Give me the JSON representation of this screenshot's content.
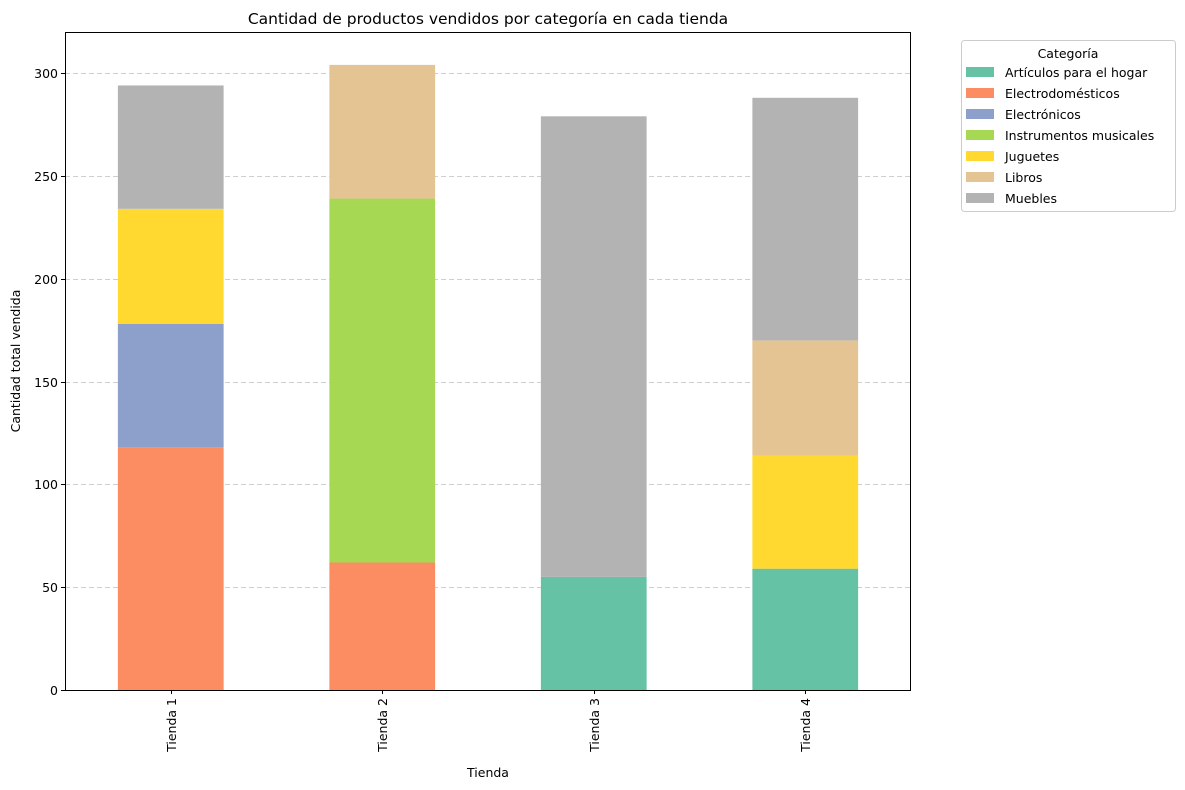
{
  "chart_data": {
    "type": "bar",
    "stacked": true,
    "title": "Cantidad de productos vendidos por categoría en cada tienda",
    "xlabel": "Tienda",
    "ylabel": "Cantidad total vendida",
    "categories": [
      "Tienda 1",
      "Tienda 2",
      "Tienda 3",
      "Tienda 4"
    ],
    "ylim": [
      0,
      320
    ],
    "yticks": [
      0,
      50,
      100,
      150,
      200,
      250,
      300
    ],
    "grid": "y-dashed",
    "legend": {
      "title": "Categoría",
      "placement": "outside-top-right"
    },
    "series": [
      {
        "name": "Artículos para el hogar",
        "color": "#66c2a5",
        "values": [
          0,
          0,
          55,
          59
        ]
      },
      {
        "name": "Electrodomésticos",
        "color": "#fc8d62",
        "values": [
          118,
          62,
          0,
          0
        ]
      },
      {
        "name": "Electrónicos",
        "color": "#8da0cb",
        "values": [
          60,
          0,
          0,
          0
        ]
      },
      {
        "name": "Instrumentos musicales",
        "color": "#a6d854",
        "values": [
          0,
          177,
          0,
          0
        ]
      },
      {
        "name": "Juguetes",
        "color": "#ffd92f",
        "values": [
          56,
          0,
          0,
          55
        ]
      },
      {
        "name": "Libros",
        "color": "#e5c494",
        "values": [
          0,
          65,
          0,
          56
        ]
      },
      {
        "name": "Muebles",
        "color": "#b3b3b3",
        "values": [
          60,
          0,
          224,
          118
        ]
      }
    ]
  }
}
